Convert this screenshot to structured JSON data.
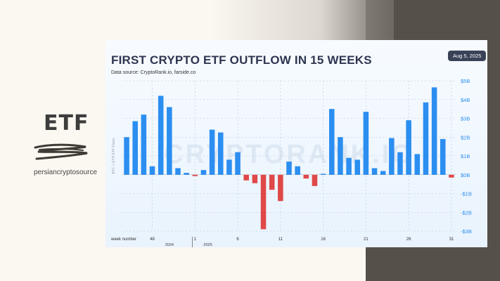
{
  "brand": {
    "title": "ETF",
    "handle": "persiancryptosource"
  },
  "card": {
    "title": "FIRST CRYPTO ETF OUTFLOW IN 15 WEEKS",
    "source": "Data source: CryptoRank.io, farside.co",
    "date": "Aug 5, 2025",
    "watermark": "CRYPTORANK.IO"
  },
  "colors": {
    "positive": "#2b8ef0",
    "negative": "#e04848",
    "title": "#2e3550",
    "axis": "#2b8ef0"
  },
  "chart_data": {
    "type": "bar",
    "ylabel": "BTC + ETH ETF Flows",
    "xlabel": "week number",
    "ylim": [
      -3,
      5
    ],
    "yticks": [
      5,
      4,
      3,
      2,
      1,
      0,
      -1,
      -2,
      -3
    ],
    "ytick_labels": [
      "$5B",
      "$4B",
      "$3B",
      "$2B",
      "$1B",
      "$0B",
      "-$1B",
      "-$2B",
      "-$3B"
    ],
    "x_tick_labels": [
      {
        "index": 3,
        "label": "48"
      },
      {
        "index": 8,
        "label": "1"
      },
      {
        "index": 13,
        "label": "6"
      },
      {
        "index": 18,
        "label": "11"
      },
      {
        "index": 23,
        "label": "16"
      },
      {
        "index": 28,
        "label": "21"
      },
      {
        "index": 33,
        "label": "26"
      },
      {
        "index": 38,
        "label": "31"
      }
    ],
    "year_labels": [
      {
        "index": 5,
        "label": "2024"
      },
      {
        "index": 9.5,
        "label": "2025"
      }
    ],
    "year_divider_index": 7.7,
    "values": [
      2.0,
      2.85,
      3.2,
      0.45,
      4.2,
      3.6,
      0.35,
      0.1,
      -0.07,
      0.25,
      2.4,
      2.25,
      0.8,
      1.2,
      -0.3,
      -0.45,
      -2.9,
      -0.8,
      -1.4,
      0.7,
      0.45,
      -0.2,
      -0.6,
      0.05,
      3.5,
      2.0,
      0.9,
      0.8,
      3.35,
      0.35,
      0.2,
      1.95,
      1.2,
      2.9,
      1.1,
      3.85,
      4.65,
      1.9,
      -0.15
    ]
  }
}
